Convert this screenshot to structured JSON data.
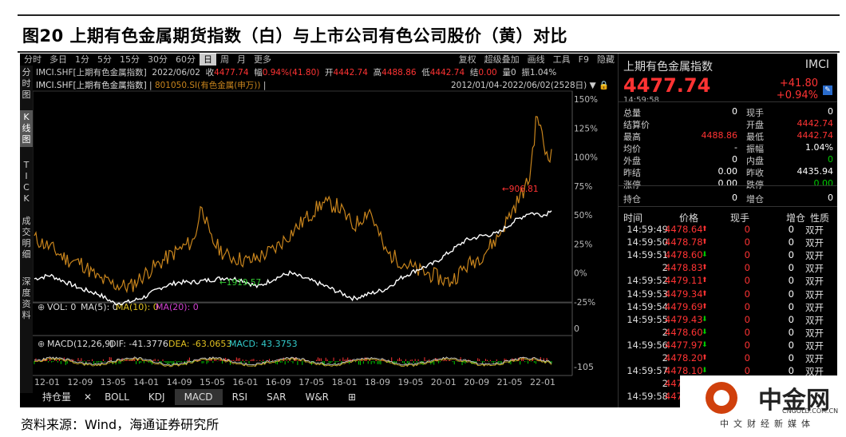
{
  "title": "图20 上期有色金属期货指数（白）与上市公司有色公司股价（黄）对比",
  "footer": "资料来源：Wind，海通证券研究所",
  "toolbar": {
    "periods": [
      "分时",
      "多日",
      "1分",
      "5分",
      "15分",
      "30分",
      "60分",
      "日",
      "周",
      "月",
      "更多"
    ],
    "active": "日",
    "right": [
      "复权",
      "超级叠加",
      "画线",
      "工具",
      "F9",
      "隐藏"
    ]
  },
  "left_strip": [
    "分时图",
    "K线图",
    "TICK",
    "成交明细",
    "深度资料"
  ],
  "info_line1": {
    "code": "IMCI.SHF[上期有色金属指数]",
    "date": "2022/06/02",
    "close_label": "收",
    "close": "4477.74",
    "amp_label": "幅",
    "amp": "0.94%(41.80)",
    "open_label": "开",
    "open": "4442.74",
    "high_label": "高",
    "high": "4488.86",
    "low_label": "低",
    "low": "4442.74",
    "settle_label": "结",
    "settle": "0.00",
    "vol_label": "量",
    "vol": "0",
    "swing_label": "振",
    "swing": "1.04%"
  },
  "info_line2": {
    "a": "IMCI.SHF[上期有色金属指数]",
    "b": "801050.SI(有色金属(申万))",
    "range": "2012/01/04-2022/06/02(2528日)"
  },
  "markers": {
    "high": "906.81",
    "low": "1919.57"
  },
  "vol_line": {
    "vol": "VOL: 0",
    "ma5": "MA(5): 0",
    "ma10": "MA(10): 0",
    "ma20": "MA(20): 0",
    "axis0": "0"
  },
  "macd_line": {
    "label": "MACD(12,26,9)",
    "dif": "DIF: -41.3776",
    "dea": "DEA: -63.0653",
    "macd": "MACD: 43.3753",
    "axis": "-105"
  },
  "bottom_tabs": [
    "持仓量",
    "BOLL",
    "KDJ",
    "MACD",
    "RSI",
    "SAR",
    "W&R"
  ],
  "active_tab": "MACD",
  "x_axis": [
    "12-01",
    "12-09",
    "13-05",
    "14-01",
    "14-09",
    "15-05",
    "16-01",
    "16-09",
    "17-05",
    "18-01",
    "18-09",
    "19-05",
    "20-01",
    "20-09",
    "21-05",
    "22-01"
  ],
  "y_axis_pct": [
    "150%",
    "125%",
    "100%",
    "75%",
    "50%",
    "25%",
    "0%",
    "-25%"
  ],
  "colors": {
    "white_series": "#ffffff",
    "yellow_series": "#c8841c",
    "up": "#ff3333",
    "down": "#00cc00"
  },
  "quote": {
    "name": "上期有色金属指数",
    "code": "IMCI",
    "price": "4477.74",
    "change": "+41.80",
    "change_pct": "+0.94%",
    "time": "14:59:58",
    "fields": [
      [
        "总量",
        "0",
        "现手",
        "0"
      ],
      [
        "结算价",
        "",
        "开盘",
        "4442.74"
      ],
      [
        "最高",
        "4488.86",
        "最低",
        "4442.74"
      ],
      [
        "均价",
        "-",
        "振幅",
        "1.04%"
      ],
      [
        "外盘",
        "0",
        "内盘",
        "0"
      ],
      [
        "昨结",
        "0.00",
        "昨收",
        "4435.94"
      ],
      [
        "涨停",
        "0.00",
        "跌停",
        "0.00"
      ],
      [
        "持仓",
        "0",
        "增仓",
        "0"
      ]
    ],
    "tick_headers": [
      "时间",
      "价格",
      "现手",
      "增仓",
      "性质"
    ],
    "ticks": [
      [
        "14:59:49",
        "4478.64",
        "up",
        "0",
        "0",
        "双开"
      ],
      [
        "14:59:50",
        "4478.78",
        "up",
        "0",
        "0",
        "双开"
      ],
      [
        "14:59:51",
        "4478.60",
        "down",
        "0",
        "0",
        "双开"
      ],
      [
        "2",
        "4478.83",
        "up",
        "0",
        "0",
        "双开"
      ],
      [
        "14:59:52",
        "4479.11",
        "up",
        "0",
        "0",
        "双开"
      ],
      [
        "14:59:53",
        "4479.34",
        "up",
        "0",
        "0",
        "双开"
      ],
      [
        "14:59:54",
        "4479.69",
        "up",
        "0",
        "0",
        "双开"
      ],
      [
        "14:59:55",
        "4479.43",
        "down",
        "0",
        "0",
        "双开"
      ],
      [
        "2",
        "4478.60",
        "down",
        "0",
        "0",
        "双开"
      ],
      [
        "14:59:56",
        "4477.97",
        "down",
        "0",
        "0",
        "双开"
      ],
      [
        "2",
        "4478.20",
        "up",
        "0",
        "0",
        "双开"
      ],
      [
        "14:59:57",
        "4478.10",
        "down",
        "0",
        "0",
        "双开"
      ],
      [
        "2",
        "4477.60",
        "down",
        "0",
        "0",
        "双开"
      ],
      [
        "14:59:58",
        "4477.74",
        "up",
        "0",
        "0",
        "双开"
      ]
    ]
  },
  "watermark": {
    "text": "中金网",
    "url": "CNGOLD.COM.CN",
    "sub": "中文财经新媒体"
  }
}
